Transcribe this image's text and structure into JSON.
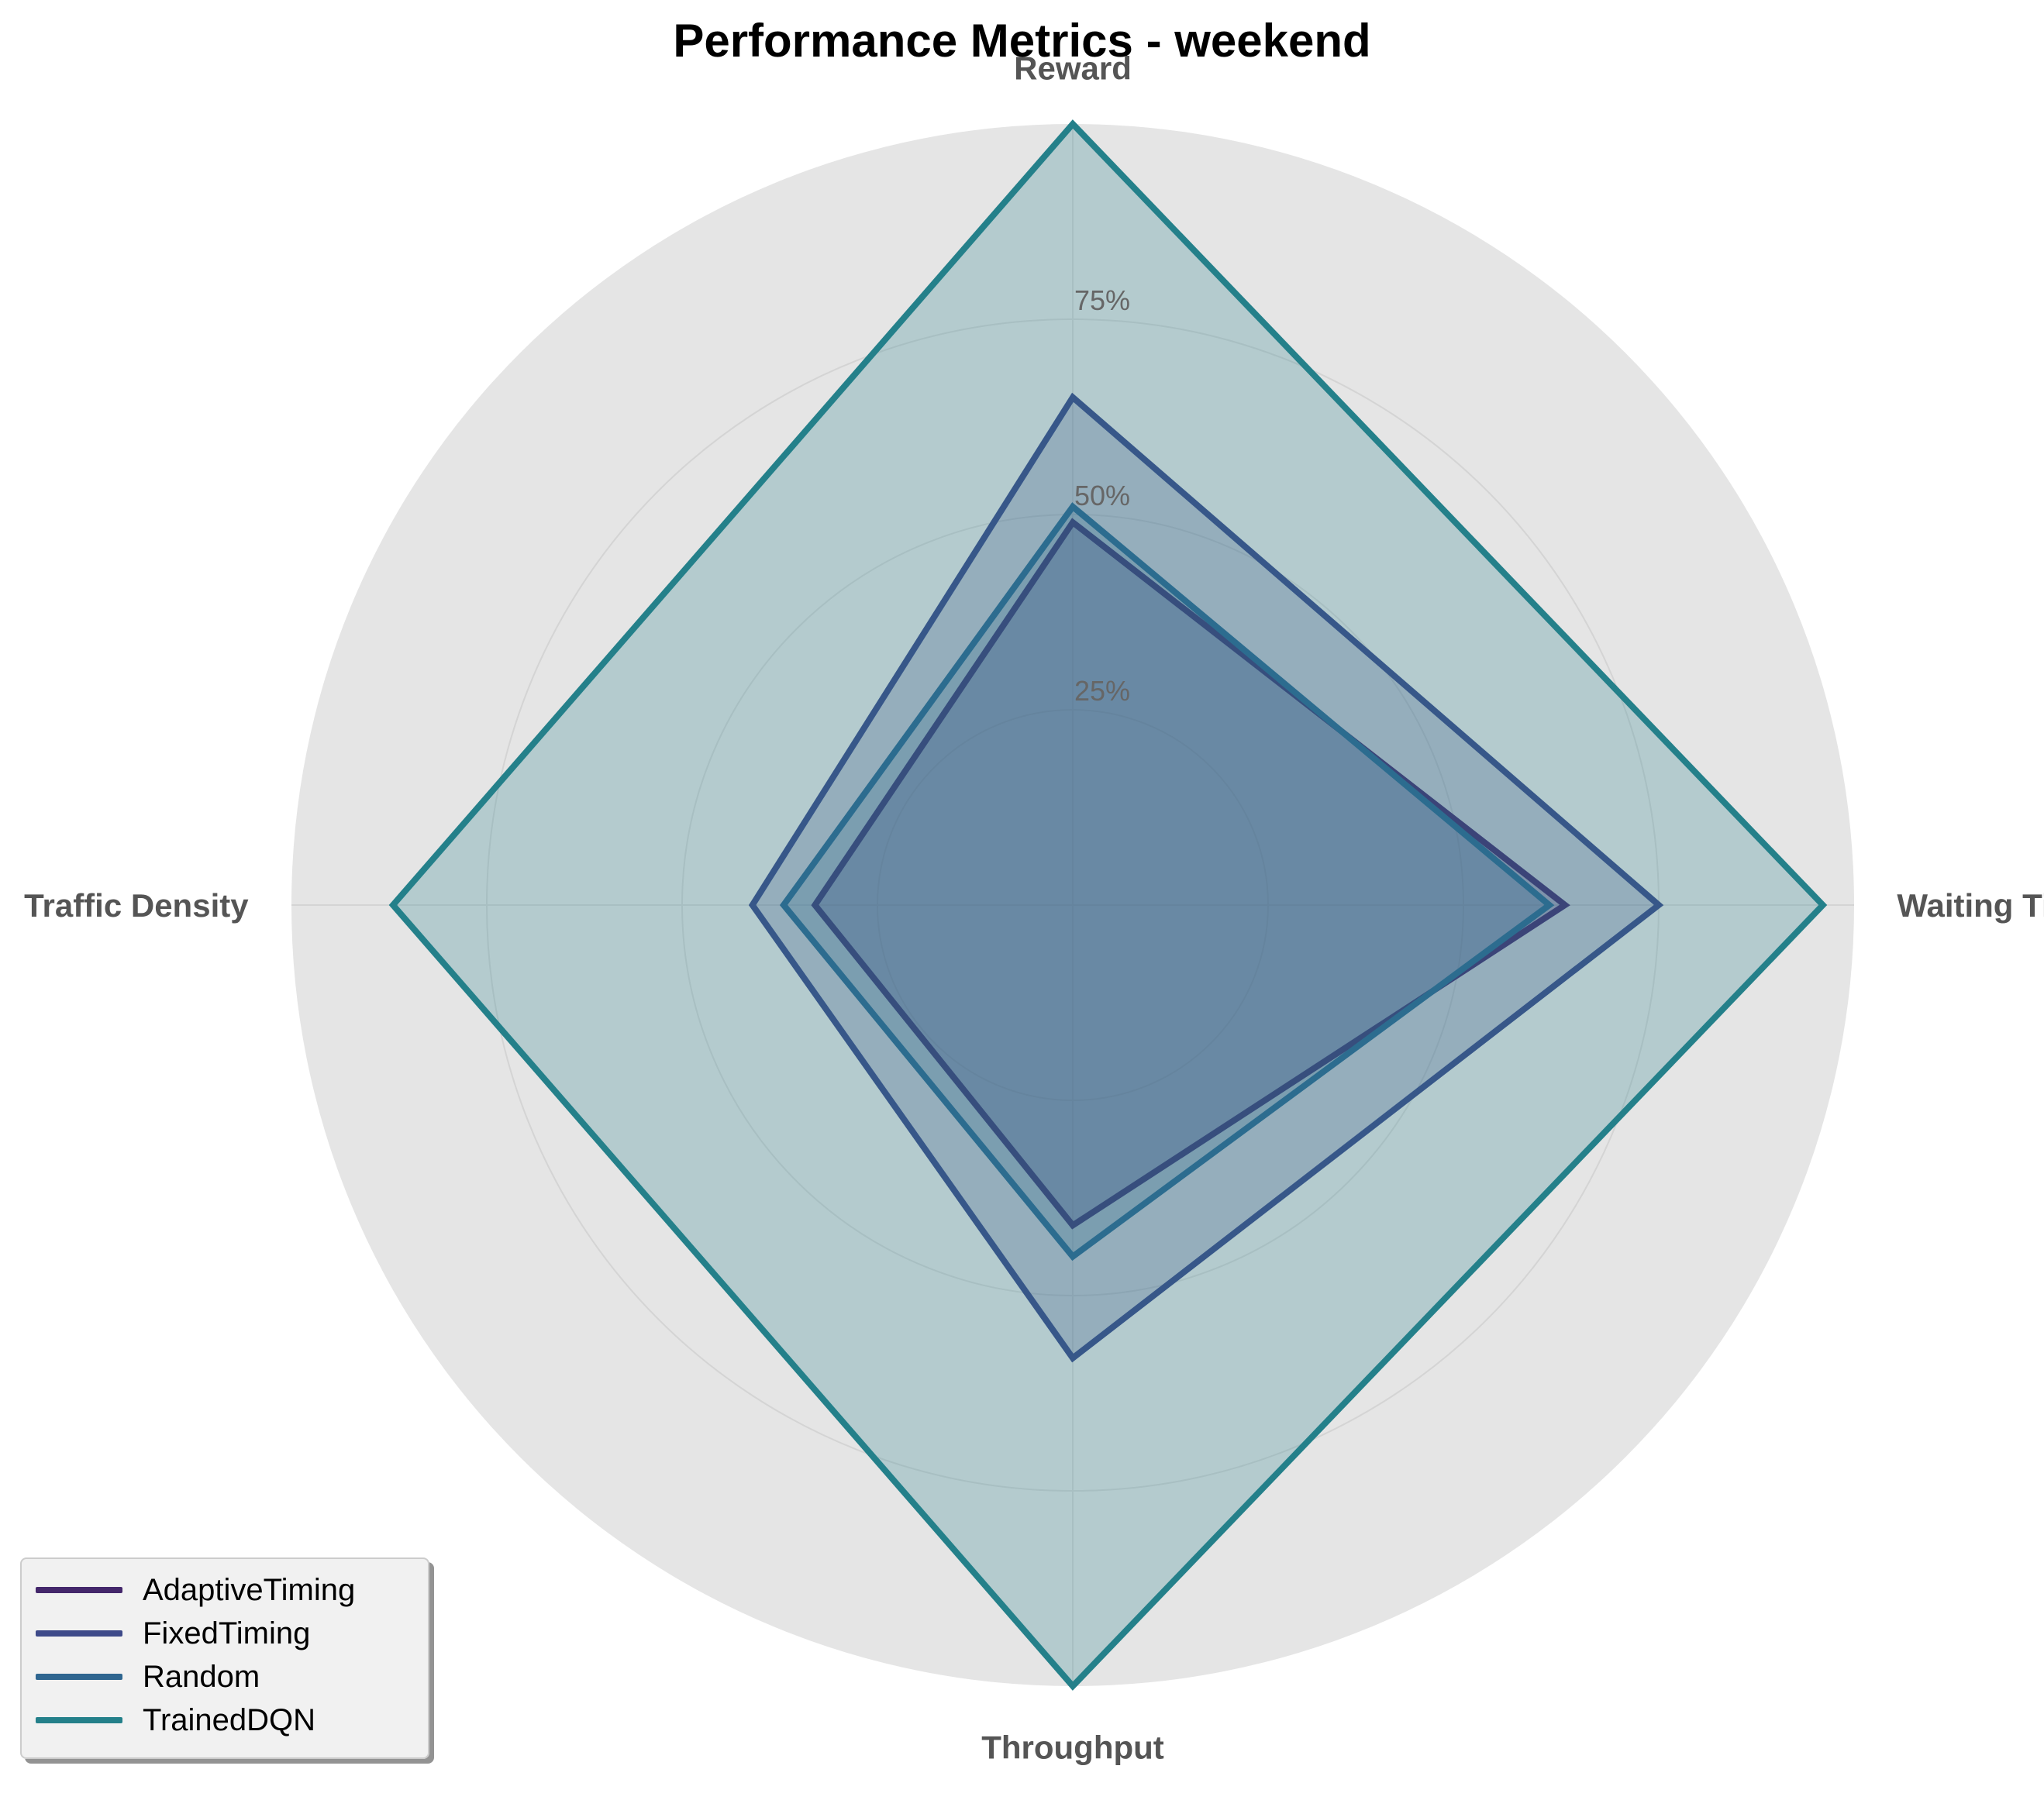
{
  "chart_data": {
    "type": "radar",
    "title": "Performance Metrics - weekend",
    "axes": [
      "Reward",
      "Waiting Time",
      "Throughput",
      "Traffic Density"
    ],
    "rlim": [
      0,
      100
    ],
    "r_ticks": [
      25,
      50,
      75
    ],
    "r_tick_labels": [
      "25%",
      "50%",
      "75%"
    ],
    "series": [
      {
        "name": "AdaptiveTiming",
        "color": "#44276b",
        "values": [
          49,
          63,
          41,
          33
        ]
      },
      {
        "name": "FixedTiming",
        "color": "#3e4a89",
        "values": [
          65,
          75,
          58,
          41
        ]
      },
      {
        "name": "Random",
        "color": "#2f6690",
        "values": [
          51,
          61,
          45,
          37
        ]
      },
      {
        "name": "TrainedDQN",
        "color": "#24808a",
        "values": [
          100,
          96,
          100,
          87
        ]
      }
    ],
    "legend": {
      "position": "bottom-left"
    },
    "grid": true
  }
}
